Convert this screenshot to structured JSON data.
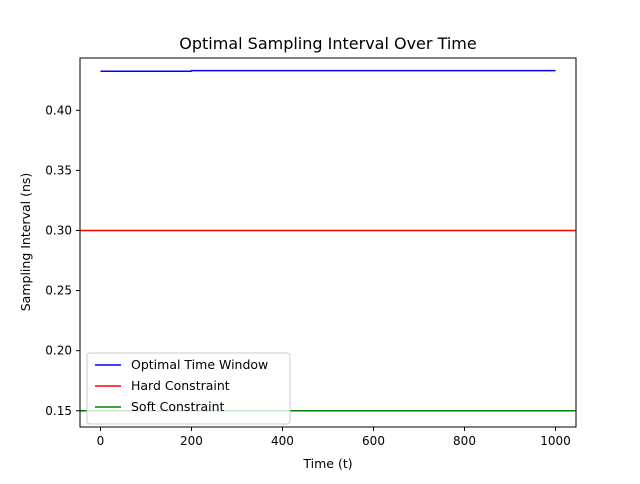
{
  "chart_data": {
    "type": "line",
    "title": "Optimal Sampling Interval Over Time",
    "xlabel": "Time (t)",
    "ylabel": "Sampling Interval (ns)",
    "xlim": [
      -45,
      1045
    ],
    "ylim": [
      0.1365,
      0.4435
    ],
    "xticks": [
      0,
      200,
      400,
      600,
      800,
      1000
    ],
    "xtick_labels": [
      "0",
      "200",
      "400",
      "600",
      "800",
      "1000"
    ],
    "yticks": [
      0.15,
      0.2,
      0.25,
      0.3,
      0.35,
      0.4
    ],
    "ytick_labels": [
      "0.15",
      "0.20",
      "0.25",
      "0.30",
      "0.35",
      "0.40"
    ],
    "grid": false,
    "legend_position": "lower-left",
    "series": [
      {
        "name": "Optimal Time Window",
        "color": "#0000ff",
        "x": [
          0,
          199,
          200,
          1000
        ],
        "y": [
          0.4325,
          0.4325,
          0.433,
          0.433
        ]
      },
      {
        "name": "Hard Constraint",
        "color": "#ff0000",
        "kind": "hline",
        "y": 0.3
      },
      {
        "name": "Soft Constraint",
        "color": "#008000",
        "kind": "hline",
        "y": 0.15
      }
    ]
  }
}
